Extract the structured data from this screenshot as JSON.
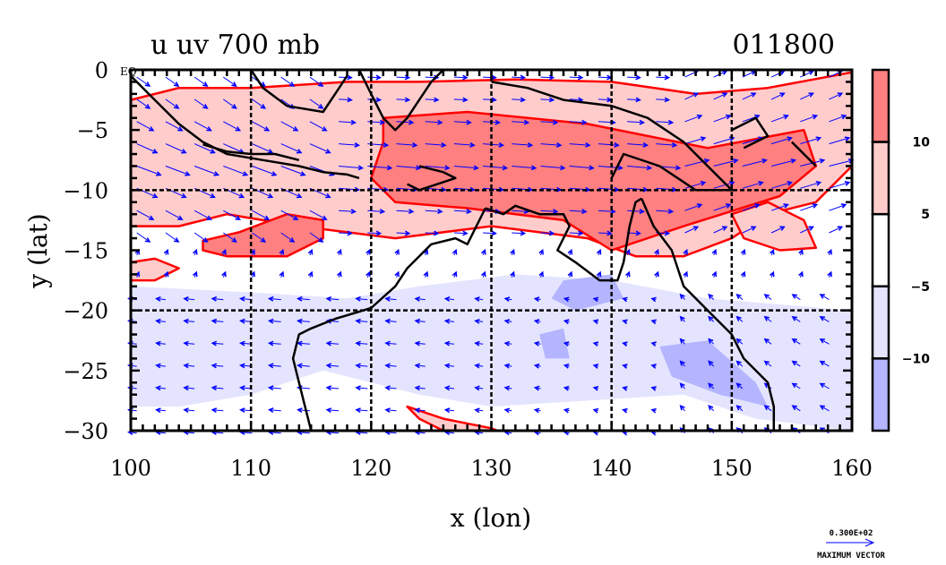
{
  "chart_data": {
    "type": "heatmap",
    "title_left": "u uv 700 mb",
    "title_right": "011800",
    "xlabel": "x (lon)",
    "ylabel": "y (lat)",
    "xlim": [
      100,
      160
    ],
    "ylim": [
      -30,
      0
    ],
    "x_ticks": [
      100,
      110,
      120,
      130,
      140,
      150,
      160
    ],
    "y_ticks": [
      0,
      -5,
      -10,
      -15,
      -20,
      -25,
      -30
    ],
    "grid_lon": [
      110,
      120,
      130,
      140,
      150
    ],
    "grid_lat": [
      -10,
      -20
    ],
    "equator_label": "EQ",
    "colorbar": {
      "levels": [
        10,
        5,
        -5,
        -10
      ],
      "labels": [
        "10",
        "5",
        "-5",
        "-10"
      ],
      "colors": [
        "#ff8080",
        "#ffcccc",
        "#ffffff",
        "#e4e4ff",
        "#b4b4ff"
      ],
      "placement": "right"
    },
    "contour_colors": {
      "positive": "#ff0000",
      "negative": "#0000ff",
      "coast": "#000000",
      "vector": "#0000ff"
    },
    "shaded_regions": [
      {
        "name": "westerly-band-strong",
        "level": ">10",
        "polygon": [
          [
            121,
            -4
          ],
          [
            128,
            -3.5
          ],
          [
            138,
            -4.5
          ],
          [
            148,
            -6.5
          ],
          [
            156,
            -5
          ],
          [
            157,
            -8
          ],
          [
            154,
            -10.5
          ],
          [
            146,
            -13
          ],
          [
            140,
            -15
          ],
          [
            136,
            -12.5
          ],
          [
            128,
            -11.5
          ],
          [
            122,
            -11
          ],
          [
            120,
            -9
          ],
          [
            121,
            -6
          ]
        ]
      },
      {
        "name": "westerly-band-moderate",
        "level": "5-10",
        "polygon": [
          [
            100,
            -2.5
          ],
          [
            104,
            -1.5
          ],
          [
            110,
            -1.5
          ],
          [
            118,
            -1
          ],
          [
            124,
            -1
          ],
          [
            132,
            -0.8
          ],
          [
            140,
            -1
          ],
          [
            147,
            -2
          ],
          [
            153,
            -1.5
          ],
          [
            160,
            -0.2
          ],
          [
            160,
            -8
          ],
          [
            157,
            -11
          ],
          [
            153,
            -12
          ],
          [
            150,
            -14
          ],
          [
            146,
            -15.5
          ],
          [
            142,
            -15.5
          ],
          [
            138,
            -14
          ],
          [
            130,
            -13
          ],
          [
            122,
            -14
          ],
          [
            114,
            -13
          ],
          [
            108,
            -12
          ],
          [
            104,
            -13
          ],
          [
            100,
            -13
          ]
        ]
      },
      {
        "name": "west-strong-blob",
        "level": ">10",
        "polygon": [
          [
            106,
            -14.2
          ],
          [
            109,
            -13.5
          ],
          [
            113,
            -12
          ],
          [
            116,
            -12.5
          ],
          [
            116,
            -14
          ],
          [
            113,
            -15.5
          ],
          [
            108,
            -15.5
          ],
          [
            106,
            -15
          ]
        ]
      },
      {
        "name": "coral-sea-moderate",
        "level": "5-10",
        "polygon": [
          [
            150,
            -12
          ],
          [
            153,
            -11
          ],
          [
            156,
            -12.5
          ],
          [
            157,
            -14.8
          ],
          [
            154,
            -15
          ],
          [
            151,
            -14
          ]
        ]
      },
      {
        "name": "southern-red-patch",
        "level": "5-10",
        "polygon": [
          [
            123,
            -28
          ],
          [
            126,
            -29
          ],
          [
            130,
            -29.8
          ],
          [
            130.5,
            -30
          ],
          [
            126,
            -30
          ],
          [
            124,
            -29
          ]
        ]
      },
      {
        "name": "sw-red-patch",
        "level": "5-10",
        "polygon": [
          [
            100,
            -16
          ],
          [
            102,
            -15.7
          ],
          [
            104,
            -16.5
          ],
          [
            102,
            -17.5
          ],
          [
            100,
            -17.5
          ]
        ]
      },
      {
        "name": "easterly-band-weak",
        "level": "-5 to -10",
        "polygon": [
          [
            100,
            -18
          ],
          [
            110,
            -18.5
          ],
          [
            118,
            -19
          ],
          [
            124,
            -18
          ],
          [
            132,
            -17
          ],
          [
            140,
            -17.5
          ],
          [
            148,
            -19
          ],
          [
            160,
            -20
          ],
          [
            160,
            -30
          ],
          [
            152,
            -29
          ],
          [
            146,
            -27
          ],
          [
            138,
            -27.5
          ],
          [
            130,
            -28
          ],
          [
            124,
            -27
          ],
          [
            116,
            -25
          ],
          [
            110,
            -27
          ],
          [
            104,
            -28
          ],
          [
            100,
            -28
          ]
        ]
      },
      {
        "name": "easterly-core-1",
        "level": "<-10",
        "polygon": [
          [
            136,
            -17.5
          ],
          [
            140,
            -17
          ],
          [
            141,
            -19
          ],
          [
            137,
            -20
          ],
          [
            135,
            -19
          ]
        ]
      },
      {
        "name": "easterly-core-2",
        "level": "<-10",
        "polygon": [
          [
            144,
            -23
          ],
          [
            148,
            -22.5
          ],
          [
            152,
            -26
          ],
          [
            153,
            -28
          ],
          [
            149,
            -27
          ],
          [
            145,
            -25.5
          ]
        ]
      },
      {
        "name": "easterly-core-3",
        "level": "<-10",
        "polygon": [
          [
            134,
            -22
          ],
          [
            136,
            -21.5
          ],
          [
            136.5,
            -24
          ],
          [
            134.5,
            -24
          ]
        ]
      }
    ],
    "vector_field": {
      "description": "700 mb wind vectors; westerlies north of ~15S, easterlies south",
      "reference_vector_value": "0.300E+02",
      "reference_vector_label": "MAXIMUM VECTOR"
    }
  }
}
